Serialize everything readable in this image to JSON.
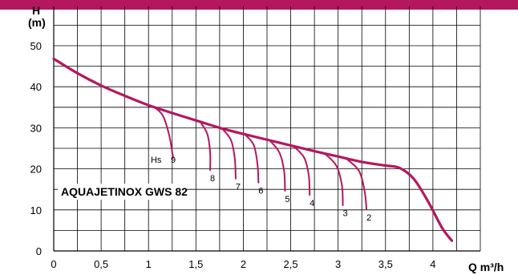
{
  "chart_data": {
    "type": "line",
    "title": "",
    "model_label": "AQUAJETINOX GWS 82",
    "xlabel": "Q m³/h",
    "ylabel_line1": "H",
    "ylabel_line2": "(m)",
    "xlim": [
      0,
      4.5
    ],
    "ylim": [
      0,
      50
    ],
    "x_ticks": [
      "0",
      "0,5",
      "1",
      "1,5",
      "2",
      "2,5",
      "3",
      "3,5",
      "4"
    ],
    "y_ticks": [
      "0",
      "10",
      "20",
      "30",
      "40",
      "50"
    ],
    "grid": true,
    "colors": {
      "curve": "#b5175e",
      "band": "#b5175e",
      "grid": "#000000"
    },
    "main_curve": {
      "name": "AQUAJETINOX GWS 82",
      "x": [
        0,
        0.25,
        0.5,
        0.75,
        1.0,
        1.25,
        1.5,
        1.75,
        2.0,
        2.25,
        2.5,
        2.75,
        3.0,
        3.25,
        3.5,
        3.65,
        3.8,
        3.95,
        4.1,
        4.2
      ],
      "y": [
        46.8,
        43.3,
        40.3,
        37.8,
        35.5,
        33.6,
        31.8,
        30.0,
        28.5,
        27.1,
        25.7,
        24.3,
        23.0,
        21.7,
        20.8,
        20.2,
        17.5,
        12.0,
        5.5,
        2.5
      ]
    },
    "suction_curves": [
      {
        "label": "Hs",
        "number": "9",
        "x": [
          1.05,
          1.15,
          1.22,
          1.26
        ],
        "y": [
          35.2,
          33.0,
          28.0,
          22.5
        ]
      },
      {
        "label": "8",
        "x": [
          1.55,
          1.62,
          1.65,
          1.65
        ],
        "y": [
          31.3,
          28.5,
          24.0,
          19.5
        ]
      },
      {
        "label": "7",
        "x": [
          1.78,
          1.87,
          1.91,
          1.92
        ],
        "y": [
          29.7,
          27.0,
          22.5,
          17.5
        ]
      },
      {
        "label": "6",
        "x": [
          2.02,
          2.11,
          2.15,
          2.16
        ],
        "y": [
          28.3,
          25.8,
          21.0,
          16.5
        ]
      },
      {
        "label": "5",
        "x": [
          2.28,
          2.38,
          2.43,
          2.44
        ],
        "y": [
          26.9,
          24.0,
          19.5,
          14.5
        ]
      },
      {
        "label": "4",
        "x": [
          2.53,
          2.64,
          2.69,
          2.7
        ],
        "y": [
          25.5,
          22.8,
          18.5,
          13.5
        ]
      },
      {
        "label": "3",
        "x": [
          2.86,
          2.98,
          3.04,
          3.05
        ],
        "y": [
          23.7,
          20.8,
          16.0,
          11.0
        ]
      },
      {
        "label": "2",
        "x": [
          3.08,
          3.22,
          3.28,
          3.3
        ],
        "y": [
          22.6,
          19.5,
          14.5,
          10.0
        ]
      }
    ]
  }
}
